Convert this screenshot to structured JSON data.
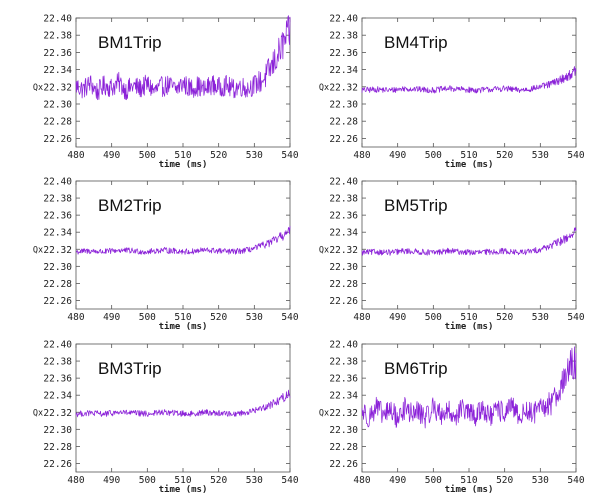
{
  "chart_data": [
    {
      "type": "line",
      "title": "BM1Trip",
      "xlabel": "time (ms)",
      "ylabel": "Qx",
      "xlim": [
        480,
        540
      ],
      "ylim": [
        22.25,
        22.4
      ],
      "xticks": [
        "480",
        "490",
        "500",
        "510",
        "520",
        "530",
        "540"
      ],
      "yticks": [
        "22.40",
        "22.38",
        "22.36",
        "22.34",
        "22.32",
        "22.30",
        "22.28",
        "22.26"
      ],
      "color": "#8b22d8",
      "series": [
        {
          "x": [
            480,
            482,
            484,
            486,
            488,
            490,
            492,
            494,
            496,
            498,
            500,
            502,
            504,
            506,
            508,
            510,
            512,
            514,
            516,
            518,
            520,
            522,
            524,
            526,
            528,
            530,
            532,
            533,
            534,
            535,
            536,
            537,
            538,
            539,
            540
          ],
          "y": [
            22.321,
            22.317,
            22.324,
            22.314,
            22.322,
            22.319,
            22.325,
            22.316,
            22.321,
            22.318,
            22.323,
            22.315,
            22.32,
            22.322,
            22.317,
            22.324,
            22.318,
            22.321,
            22.316,
            22.323,
            22.319,
            22.322,
            22.317,
            22.321,
            22.318,
            22.322,
            22.327,
            22.331,
            22.338,
            22.344,
            22.352,
            22.36,
            22.369,
            22.377,
            22.385
          ]
        }
      ]
    },
    {
      "type": "line",
      "title": "BM4Trip",
      "xlabel": "time (ms)",
      "ylabel": "Qx",
      "xlim": [
        480,
        540
      ],
      "ylim": [
        22.25,
        22.4
      ],
      "xticks": [
        "480",
        "490",
        "500",
        "510",
        "520",
        "530",
        "540"
      ],
      "yticks": [
        "22.40",
        "22.38",
        "22.36",
        "22.34",
        "22.32",
        "22.30",
        "22.28",
        "22.26"
      ],
      "color": "#8b22d8",
      "series": [
        {
          "x": [
            480,
            484,
            488,
            492,
            496,
            500,
            504,
            508,
            512,
            516,
            520,
            524,
            528,
            530,
            532,
            534,
            536,
            538,
            540
          ],
          "y": [
            22.316,
            22.317,
            22.316,
            22.318,
            22.317,
            22.316,
            22.318,
            22.317,
            22.316,
            22.317,
            22.318,
            22.316,
            22.318,
            22.32,
            22.322,
            22.325,
            22.329,
            22.333,
            22.339
          ]
        }
      ]
    },
    {
      "type": "line",
      "title": "BM2Trip",
      "xlabel": "time (ms)",
      "ylabel": "Qx",
      "xlim": [
        480,
        540
      ],
      "ylim": [
        22.25,
        22.4
      ],
      "xticks": [
        "480",
        "490",
        "500",
        "510",
        "520",
        "530",
        "540"
      ],
      "yticks": [
        "22.40",
        "22.38",
        "22.36",
        "22.34",
        "22.32",
        "22.30",
        "22.28",
        "22.26"
      ],
      "color": "#8b22d8",
      "series": [
        {
          "x": [
            480,
            484,
            488,
            492,
            496,
            500,
            504,
            508,
            512,
            516,
            520,
            524,
            528,
            530,
            532,
            534,
            536,
            538,
            540
          ],
          "y": [
            22.317,
            22.318,
            22.317,
            22.319,
            22.318,
            22.317,
            22.319,
            22.318,
            22.317,
            22.319,
            22.318,
            22.317,
            22.319,
            22.321,
            22.324,
            22.327,
            22.331,
            22.336,
            22.341
          ]
        }
      ]
    },
    {
      "type": "line",
      "title": "BM5Trip",
      "xlabel": "time (ms)",
      "ylabel": "Qx",
      "xlim": [
        480,
        540
      ],
      "ylim": [
        22.25,
        22.4
      ],
      "xticks": [
        "480",
        "490",
        "500",
        "510",
        "520",
        "530",
        "540"
      ],
      "yticks": [
        "22.40",
        "22.38",
        "22.36",
        "22.34",
        "22.32",
        "22.30",
        "22.28",
        "22.26"
      ],
      "color": "#8b22d8",
      "series": [
        {
          "x": [
            480,
            484,
            488,
            492,
            496,
            500,
            504,
            508,
            512,
            516,
            520,
            524,
            528,
            530,
            532,
            534,
            536,
            538,
            540
          ],
          "y": [
            22.316,
            22.317,
            22.316,
            22.318,
            22.317,
            22.316,
            22.318,
            22.317,
            22.316,
            22.317,
            22.318,
            22.316,
            22.318,
            22.32,
            22.323,
            22.326,
            22.33,
            22.335,
            22.341
          ]
        }
      ]
    },
    {
      "type": "line",
      "title": "BM3Trip",
      "xlabel": "time (ms)",
      "ylabel": "Qx",
      "xlim": [
        480,
        540
      ],
      "ylim": [
        22.25,
        22.4
      ],
      "xticks": [
        "480",
        "490",
        "500",
        "510",
        "520",
        "530",
        "540"
      ],
      "yticks": [
        "22.40",
        "22.38",
        "22.36",
        "22.34",
        "22.32",
        "22.30",
        "22.28",
        "22.26"
      ],
      "color": "#8b22d8",
      "series": [
        {
          "x": [
            480,
            484,
            488,
            492,
            496,
            500,
            504,
            508,
            512,
            516,
            520,
            524,
            528,
            530,
            532,
            534,
            536,
            538,
            540
          ],
          "y": [
            22.318,
            22.319,
            22.318,
            22.32,
            22.319,
            22.318,
            22.32,
            22.319,
            22.318,
            22.32,
            22.319,
            22.318,
            22.32,
            22.322,
            22.325,
            22.328,
            22.332,
            22.337,
            22.342
          ]
        }
      ]
    },
    {
      "type": "line",
      "title": "BM6Trip",
      "xlabel": "time (ms)",
      "ylabel": "Qx",
      "xlim": [
        480,
        540
      ],
      "ylim": [
        22.25,
        22.4
      ],
      "xticks": [
        "480",
        "490",
        "500",
        "510",
        "520",
        "530",
        "540"
      ],
      "yticks": [
        "22.40",
        "22.38",
        "22.36",
        "22.34",
        "22.32",
        "22.30",
        "22.28",
        "22.26"
      ],
      "color": "#8b22d8",
      "series": [
        {
          "x": [
            480,
            482,
            484,
            486,
            488,
            490,
            492,
            494,
            496,
            498,
            500,
            502,
            504,
            506,
            508,
            510,
            512,
            514,
            516,
            518,
            520,
            522,
            524,
            526,
            528,
            530,
            532,
            533,
            534,
            535,
            536,
            537,
            538,
            539,
            540
          ],
          "y": [
            22.322,
            22.314,
            22.326,
            22.316,
            22.323,
            22.312,
            22.325,
            22.318,
            22.321,
            22.313,
            22.327,
            22.317,
            22.322,
            22.315,
            22.324,
            22.319,
            22.316,
            22.325,
            22.314,
            22.322,
            22.32,
            22.326,
            22.315,
            22.321,
            22.319,
            22.323,
            22.328,
            22.332,
            22.339,
            22.346,
            22.353,
            22.361,
            22.368,
            22.375,
            22.382
          ]
        }
      ]
    }
  ]
}
